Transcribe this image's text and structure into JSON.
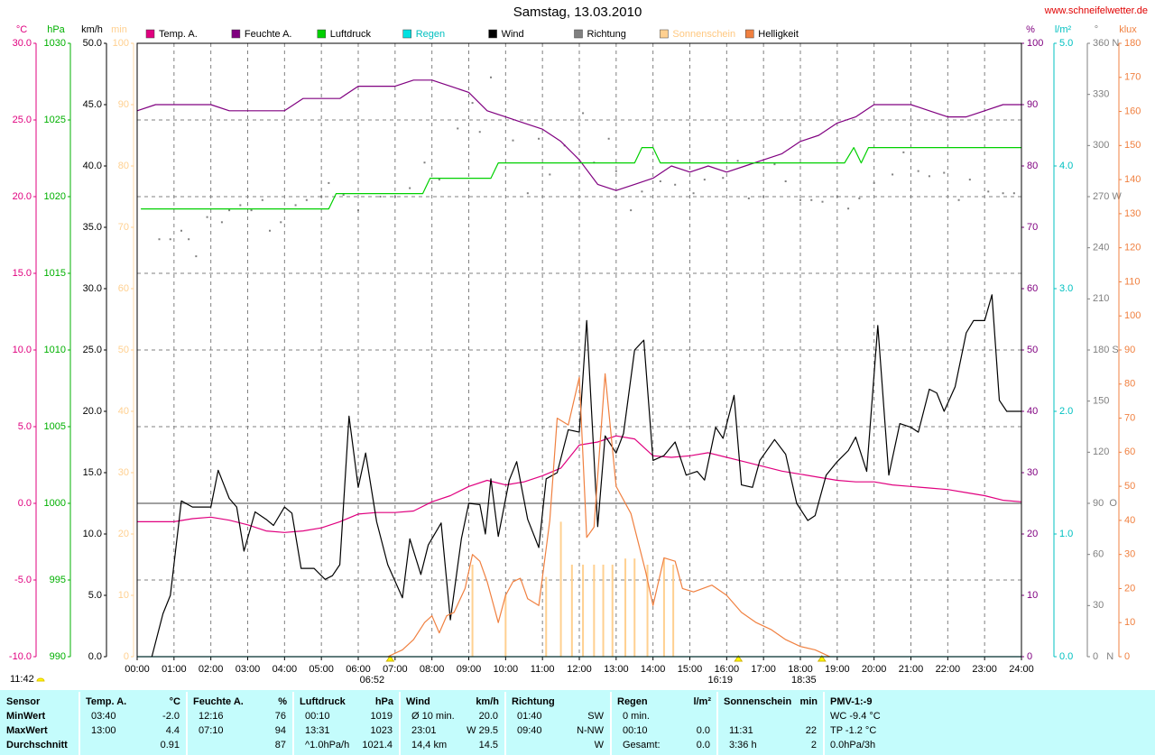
{
  "chart_data": {
    "type": "line",
    "title": "Samstag, 13.03.2010",
    "source": "www.schneifelwetter.de",
    "noon_label": "11:42",
    "markers": [
      {
        "x": 6.8667,
        "label": "06:52"
      },
      {
        "x": 16.3167,
        "label": "16:19"
      },
      {
        "x": 18.5833,
        "label": "18:35"
      }
    ],
    "xlim": [
      0,
      24
    ],
    "xticks": [
      {
        "value": 0,
        "label": "00:00"
      },
      {
        "value": 1,
        "label": "01:00"
      },
      {
        "value": 2,
        "label": "02:00"
      },
      {
        "value": 3,
        "label": "03:00"
      },
      {
        "value": 4,
        "label": "04:00"
      },
      {
        "value": 5,
        "label": "05:00"
      },
      {
        "value": 6,
        "label": "06:00"
      },
      {
        "value": 7,
        "label": "07:00"
      },
      {
        "value": 8,
        "label": "08:00"
      },
      {
        "value": 9,
        "label": "09:00"
      },
      {
        "value": 10,
        "label": "10:00"
      },
      {
        "value": 11,
        "label": "11:00"
      },
      {
        "value": 12,
        "label": "12:00"
      },
      {
        "value": 13,
        "label": "13:00"
      },
      {
        "value": 14,
        "label": "14:00"
      },
      {
        "value": 15,
        "label": "15:00"
      },
      {
        "value": 16,
        "label": "16:00"
      },
      {
        "value": 17,
        "label": "17:00"
      },
      {
        "value": 18,
        "label": "18:00"
      },
      {
        "value": 19,
        "label": "19:00"
      },
      {
        "value": 20,
        "label": "20:00"
      },
      {
        "value": 21,
        "label": "21:00"
      },
      {
        "value": 22,
        "label": "22:00"
      },
      {
        "value": 23,
        "label": "23:00"
      },
      {
        "value": 24,
        "label": "24:00"
      }
    ],
    "grid": true,
    "grid_axis": 0,
    "axes": [
      {
        "label": "°C",
        "side": "left",
        "color": "#e0007f",
        "lim": [
          -10,
          30
        ],
        "ticks": [
          {
            "value": -10,
            "label": "-10.0"
          },
          {
            "value": -5,
            "label": "-5.0"
          },
          {
            "value": 0,
            "label": "0.0"
          },
          {
            "value": 5,
            "label": "5.0"
          },
          {
            "value": 10,
            "label": "10.0"
          },
          {
            "value": 15,
            "label": "15.0"
          },
          {
            "value": 20,
            "label": "20.0"
          },
          {
            "value": 25,
            "label": "25.0"
          },
          {
            "value": 30,
            "label": "30.0"
          }
        ]
      },
      {
        "label": "hPa",
        "side": "left",
        "color": "#00b000",
        "lim": [
          990,
          1030
        ],
        "ticks": [
          990,
          995,
          1000,
          1005,
          1010,
          1015,
          1020,
          1025,
          1030
        ]
      },
      {
        "label": "km/h",
        "side": "left",
        "color": "#000000",
        "lim": [
          0,
          50
        ],
        "ticks": [
          {
            "value": 0,
            "label": "0.0"
          },
          {
            "value": 5,
            "label": "5.0"
          },
          {
            "value": 10,
            "label": "10.0"
          },
          {
            "value": 15,
            "label": "15.0"
          },
          {
            "value": 20,
            "label": "20.0"
          },
          {
            "value": 25,
            "label": "25.0"
          },
          {
            "value": 30,
            "label": "30.0"
          },
          {
            "value": 35,
            "label": "35.0"
          },
          {
            "value": 40,
            "label": "40.0"
          },
          {
            "value": 45,
            "label": "45.0"
          },
          {
            "value": 50,
            "label": "50.0"
          }
        ]
      },
      {
        "label": "min",
        "side": "left",
        "color": "#ffd090",
        "lim": [
          0,
          100
        ],
        "ticks": [
          0,
          10,
          20,
          30,
          40,
          50,
          60,
          70,
          80,
          90,
          100
        ]
      },
      {
        "label": "%",
        "side": "right",
        "color": "#800080",
        "lim": [
          0,
          100
        ],
        "ticks": [
          0,
          10,
          20,
          30,
          40,
          50,
          60,
          70,
          80,
          90,
          100
        ]
      },
      {
        "label": "l/m²",
        "side": "right",
        "color": "#00c0c0",
        "lim": [
          0,
          5
        ],
        "ticks": [
          {
            "value": 0,
            "label": "0.0"
          },
          {
            "value": 1,
            "label": "1.0"
          },
          {
            "value": 2,
            "label": "2.0"
          },
          {
            "value": 3,
            "label": "3.0"
          },
          {
            "value": 4,
            "label": "4.0"
          },
          {
            "value": 5,
            "label": "5.0"
          }
        ]
      },
      {
        "label": "°",
        "side": "right",
        "color": "#808080",
        "lim": [
          0,
          360
        ],
        "ticks": [
          {
            "value": 0,
            "label": "0   N"
          },
          30,
          60,
          {
            "value": 90,
            "label": "90  O"
          },
          120,
          150,
          {
            "value": 180,
            "label": "180 S"
          },
          210,
          240,
          {
            "value": 270,
            "label": "270 W"
          },
          300,
          330,
          {
            "value": 360,
            "label": "360 N"
          }
        ]
      },
      {
        "label": "klux",
        "side": "right",
        "color": "#f08040",
        "lim": [
          0,
          180
        ],
        "ticks": [
          0,
          10,
          20,
          30,
          40,
          50,
          60,
          70,
          80,
          90,
          100,
          110,
          120,
          130,
          140,
          150,
          160,
          170,
          180
        ]
      }
    ],
    "x": [
      0,
      0.5,
      1,
      1.5,
      2,
      2.5,
      3,
      3.5,
      4,
      4.5,
      5,
      5.5,
      6,
      6.5,
      7,
      7.5,
      8,
      8.5,
      9,
      9.5,
      10,
      10.5,
      11,
      11.5,
      12,
      12.5,
      13,
      13.5,
      14,
      14.5,
      15,
      15.5,
      16,
      16.5,
      17,
      17.5,
      18,
      18.5,
      19,
      19.5,
      20,
      20.5,
      21,
      21.5,
      22,
      22.5,
      23,
      23.5,
      24
    ],
    "series": [
      {
        "name": "Temp. A.",
        "color": "#e0007f",
        "axis": 0,
        "mark": "line",
        "values": [
          -1.2,
          -1.2,
          -1.2,
          -1.0,
          -0.9,
          -1.1,
          -1.4,
          -1.8,
          -1.9,
          -1.8,
          -1.6,
          -1.2,
          -0.7,
          -0.6,
          -0.6,
          -0.5,
          0.1,
          0.5,
          1.1,
          1.5,
          1.2,
          1.4,
          1.8,
          2.3,
          3.8,
          4.0,
          4.4,
          4.2,
          3.1,
          3.0,
          3.1,
          3.3,
          3.0,
          2.7,
          2.4,
          2.1,
          1.9,
          1.7,
          1.5,
          1.4,
          1.4,
          1.2,
          1.1,
          1.0,
          0.9,
          0.7,
          0.5,
          0.2,
          0.1
        ]
      },
      {
        "name": "Feuchte A.",
        "color": "#800080",
        "axis": 4,
        "mark": "line",
        "values": [
          89,
          90,
          90,
          90,
          90,
          89,
          89,
          89,
          89,
          91,
          91,
          91,
          93,
          93,
          93,
          94,
          94,
          93,
          92,
          89,
          88,
          87,
          86,
          84,
          81,
          77,
          76,
          77,
          78,
          80,
          79,
          80,
          79,
          80,
          81,
          82,
          84,
          85,
          87,
          88,
          90,
          90,
          90,
          89,
          88,
          88,
          89,
          90,
          90
        ]
      },
      {
        "name": "Luftdruck",
        "color": "#00d000",
        "axis": 1,
        "mark": "line",
        "x": [
          0.1,
          5.2,
          5.4,
          7.75,
          7.95,
          9.6,
          9.8,
          13.5,
          13.7,
          14.0,
          14.2,
          19.2,
          19.45,
          19.65,
          19.85,
          24
        ],
        "values": [
          1019.2,
          1019.2,
          1020.2,
          1020.2,
          1021.2,
          1021.2,
          1022.2,
          1022.2,
          1023.2,
          1023.2,
          1022.2,
          1022.2,
          1023.2,
          1022.2,
          1023.2,
          1023.2
        ]
      },
      {
        "name": "Regen",
        "color": "#00e0e0",
        "label_color": "#00c0c0",
        "axis": 5,
        "mark": "line",
        "x": [
          0,
          24
        ],
        "values": [
          0,
          0
        ]
      },
      {
        "name": "Wind",
        "color": "#000000",
        "axis": 2,
        "mark": "line",
        "x": [
          0.4,
          0.7,
          0.9,
          1.2,
          1.5,
          2.0,
          2.2,
          2.5,
          2.7,
          2.9,
          3.2,
          3.5,
          3.7,
          4.0,
          4.2,
          4.45,
          4.8,
          5.1,
          5.3,
          5.5,
          5.75,
          6.0,
          6.2,
          6.5,
          6.8,
          7.2,
          7.4,
          7.7,
          7.9,
          8.25,
          8.5,
          8.8,
          9.0,
          9.3,
          9.45,
          9.6,
          9.8,
          10.1,
          10.3,
          10.6,
          10.9,
          11.1,
          11.4,
          11.7,
          12.0,
          12.2,
          12.5,
          12.7,
          13.0,
          13.2,
          13.5,
          13.75,
          14.0,
          14.3,
          14.6,
          14.9,
          15.2,
          15.4,
          15.7,
          15.9,
          16.2,
          16.4,
          16.7,
          16.9,
          17.3,
          17.6,
          17.9,
          18.2,
          18.4,
          18.7,
          19.0,
          19.3,
          19.5,
          19.8,
          20.1,
          20.4,
          20.7,
          21.0,
          21.2,
          21.5,
          21.7,
          21.9,
          22.2,
          22.5,
          22.7,
          23.0,
          23.2,
          23.4,
          23.6,
          24.0
        ],
        "values": [
          0,
          3.5,
          5,
          12.7,
          12.2,
          12.2,
          15.2,
          12.9,
          12.2,
          8.6,
          11.8,
          11.2,
          10.7,
          12.2,
          11.7,
          7.2,
          7.2,
          6.3,
          6.6,
          7.5,
          19.6,
          13.8,
          16.6,
          11.0,
          7.5,
          4.8,
          9.6,
          6.7,
          9.1,
          10.9,
          3.0,
          9.6,
          12.5,
          12.4,
          10.0,
          14.5,
          9.8,
          14.4,
          15.9,
          11.2,
          8.9,
          14.5,
          15.0,
          18.5,
          18.3,
          27.4,
          10.6,
          18.0,
          16.6,
          18.2,
          25.0,
          25.8,
          16.0,
          16.4,
          17.5,
          14.8,
          15.1,
          14.4,
          18.7,
          17.8,
          21.3,
          14.0,
          13.8,
          16.0,
          17.7,
          16.5,
          12.5,
          11.1,
          11.5,
          14.8,
          15.9,
          16.8,
          17.9,
          15.1,
          27.0,
          14.8,
          19.0,
          18.7,
          18.3,
          21.8,
          21.5,
          20.0,
          22.0,
          26.4,
          27.4,
          27.4,
          29.5,
          20.9,
          20.0,
          20.0
        ]
      },
      {
        "name": "Richtung",
        "color": "#808080",
        "axis": 6,
        "mark": "dots",
        "x": [
          0.6,
          0.9,
          1.2,
          1.4,
          1.6,
          1.9,
          2.3,
          2.5,
          2.8,
          3.1,
          3.4,
          3.6,
          3.9,
          4.3,
          4.6,
          5.0,
          5.2,
          5.6,
          6.0,
          6.6,
          7.0,
          7.4,
          7.8,
          8.2,
          8.7,
          9.1,
          9.3,
          9.6,
          10.2,
          10.6,
          10.9,
          11.2,
          11.6,
          12.1,
          12.4,
          12.8,
          13.0,
          13.4,
          13.7,
          14.2,
          14.6,
          15.1,
          15.4,
          15.9,
          16.3,
          16.6,
          17.0,
          17.3,
          17.6,
          18.0,
          18.3,
          18.6,
          19.0,
          19.3,
          19.6,
          20.0,
          20.5,
          20.8,
          21.2,
          21.5,
          21.9,
          22.3,
          22.6,
          23.1,
          23.5,
          23.8
        ],
        "values": [
          245,
          245,
          250,
          245,
          235,
          258,
          255,
          262,
          265,
          262,
          268,
          250,
          255,
          265,
          268,
          270,
          278,
          271,
          262,
          270,
          270,
          275,
          290,
          280,
          310,
          325,
          308,
          340,
          303,
          272,
          304,
          283,
          300,
          319,
          290,
          304,
          285,
          262,
          273,
          279,
          277,
          272,
          280,
          281,
          291,
          269,
          270,
          289,
          279,
          268,
          268,
          267,
          270,
          263,
          269,
          278,
          283,
          296,
          285,
          282,
          284,
          268,
          280,
          273,
          272,
          272
        ]
      },
      {
        "name": "Sonnenschein",
        "color": "#ffd090",
        "label_color": "#ffc880",
        "axis": 3,
        "mark": "bars",
        "x": [
          9.1,
          10.0,
          11.1,
          11.5,
          11.8,
          12.1,
          12.4,
          12.65,
          12.9,
          13.25,
          13.5,
          13.85,
          14.3,
          14.55
        ],
        "values": [
          15,
          10,
          13,
          22,
          15,
          15,
          15,
          15,
          15,
          16,
          16,
          15,
          16,
          15
        ]
      },
      {
        "name": "Helligkeit",
        "color": "#f08040",
        "axis": 7,
        "mark": "line",
        "x": [
          6.8,
          7.2,
          7.5,
          7.8,
          8.0,
          8.2,
          8.4,
          8.6,
          8.9,
          9.1,
          9.3,
          9.5,
          9.8,
          10.0,
          10.2,
          10.4,
          10.6,
          10.9,
          11.2,
          11.4,
          11.7,
          12.0,
          12.2,
          12.4,
          12.7,
          13.0,
          13.4,
          13.8,
          14.0,
          14.3,
          14.6,
          14.8,
          15.1,
          15.6,
          16.0,
          16.4,
          16.8,
          17.2,
          17.6,
          18.0,
          18.4,
          18.6,
          18.8
        ],
        "values": [
          0,
          2,
          5,
          10,
          12,
          7,
          12,
          13,
          20,
          30,
          28,
          22,
          10,
          18,
          22,
          23,
          17,
          15,
          40,
          70,
          68,
          82,
          35,
          38,
          83,
          50,
          42,
          25,
          15,
          29,
          28,
          20,
          19,
          21,
          18,
          13,
          10,
          8,
          5,
          3,
          2,
          1,
          0
        ]
      }
    ]
  },
  "table": {
    "groups": [
      {
        "head": "Sensor",
        "rows": [
          {
            "l": "MinWert"
          },
          {
            "l": "MaxWert"
          },
          {
            "l": "Durchschnitt"
          }
        ]
      },
      {
        "head": "Temp. A.",
        "unit": "°C",
        "rows": [
          {
            "l": "03:40",
            "r": "-2.0"
          },
          {
            "l": "13:00",
            "r": "4.4"
          },
          {
            "r": "0.91"
          }
        ]
      },
      {
        "head": "Feuchte A.",
        "unit": "%",
        "rows": [
          {
            "l": "12:16",
            "r": "76"
          },
          {
            "l": "07:10",
            "r": "94"
          },
          {
            "r": "87"
          }
        ]
      },
      {
        "head": "Luftdruck",
        "unit": "hPa",
        "rows": [
          {
            "l": "00:10",
            "r": "1019"
          },
          {
            "l": "13:31",
            "r": "1023"
          },
          {
            "l": "^1.0hPa/h",
            "r": "1021.4"
          }
        ]
      },
      {
        "head": "Wind",
        "unit": "km/h",
        "rows": [
          {
            "l": "Ø 10 min.",
            "r": "20.0"
          },
          {
            "l": "23:01",
            "r": "W 29.5"
          },
          {
            "l": "14,4 km",
            "r": "14.5"
          }
        ]
      },
      {
        "head": "Richtung",
        "rows": [
          {
            "l": "01:40",
            "r": "SW"
          },
          {
            "l": "09:40",
            "r": "N-NW"
          },
          {
            "r": "W"
          }
        ]
      },
      {
        "head": "Regen",
        "unit": "l/m²",
        "rows": [
          {
            "l": "0 min."
          },
          {
            "l": "00:10",
            "r": "0.0"
          },
          {
            "l": "Gesamt:",
            "r": "0.0"
          }
        ]
      },
      {
        "head": "Sonnenschein",
        "unit": "min",
        "rows": [
          null,
          {
            "l": "11:31",
            "r": "22"
          },
          {
            "l": "3:36 h",
            "r": "2"
          }
        ]
      },
      {
        "head": "PMV-1:-9",
        "rows": [
          {
            "l": "WC -9.4 °C"
          },
          {
            "l": "TP -1.2 °C"
          },
          {
            "l": "0.0hPa/3h"
          }
        ]
      }
    ]
  }
}
